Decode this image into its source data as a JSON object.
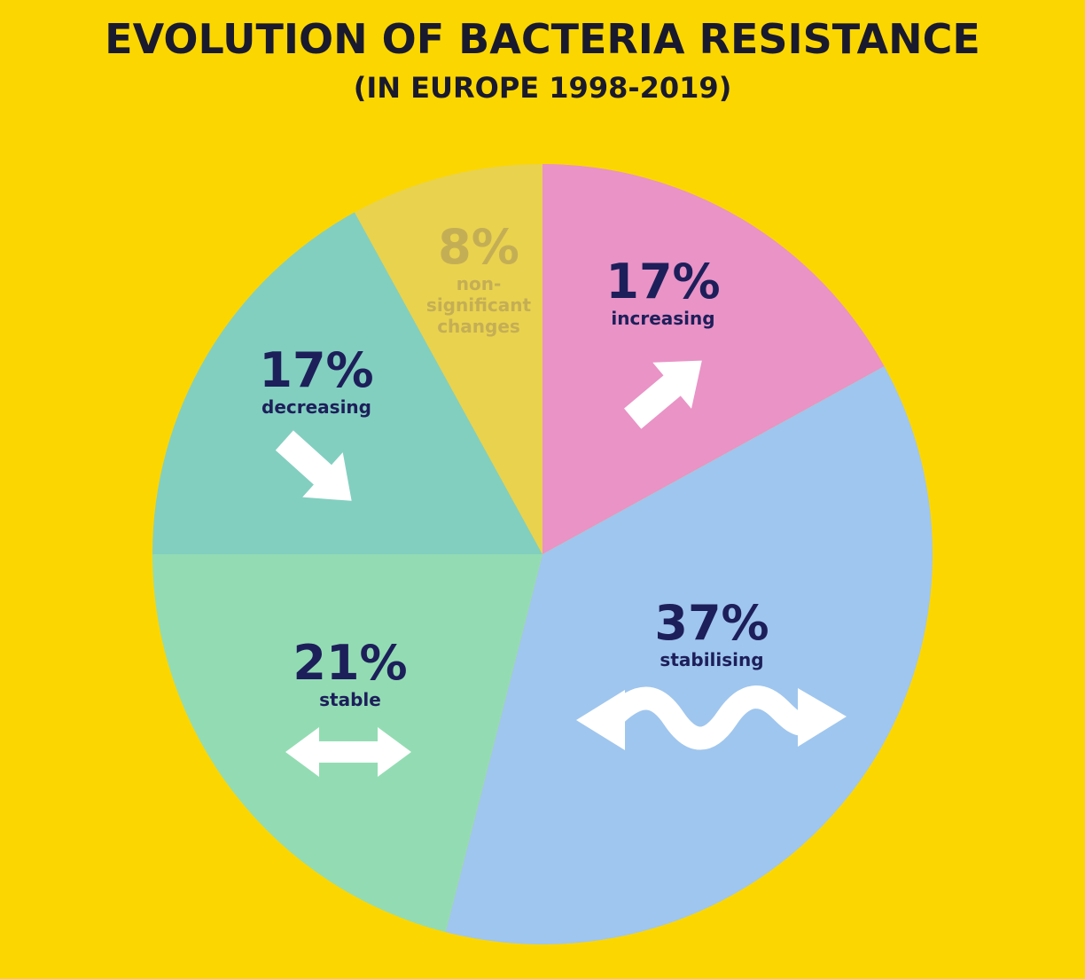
{
  "chart_data": {
    "type": "pie",
    "title": "EVOLUTION OF BACTERIA RESISTANCE",
    "subtitle": "(IN EUROPE 1998-2019)",
    "categories": [
      "increasing",
      "stabilising",
      "stable",
      "decreasing",
      "non-significant changes"
    ],
    "values": [
      17,
      37,
      21,
      17,
      8
    ],
    "value_labels": [
      "17%",
      "37%",
      "21%",
      "17%",
      "8%"
    ],
    "colors": [
      "#e993c6",
      "#9fc6ee",
      "#93dcb3",
      "#82cfc0",
      "#e9d24e"
    ]
  }
}
